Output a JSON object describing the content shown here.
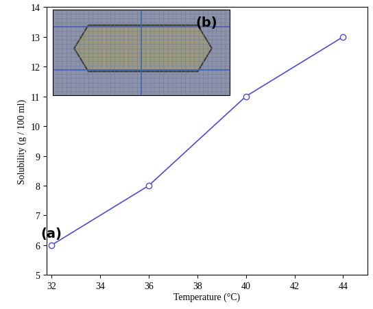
{
  "chart_data": {
    "type": "line",
    "x": [
      32,
      36,
      40,
      44
    ],
    "values": [
      6,
      8,
      11,
      13
    ],
    "color": "#4b4bd6",
    "marker": "o",
    "line_style": "solid",
    "xlabel": "Temperature (°C)",
    "ylabel": "Solubility (g / 100 ml)",
    "xlim": [
      31.8,
      45
    ],
    "ylim": [
      5,
      14
    ],
    "xticks": [
      32,
      34,
      36,
      38,
      40,
      42,
      44
    ],
    "yticks": [
      5,
      6,
      7,
      8,
      9,
      10,
      11,
      12,
      13,
      14
    ],
    "annotations": [
      "(a)",
      "(b)"
    ]
  }
}
